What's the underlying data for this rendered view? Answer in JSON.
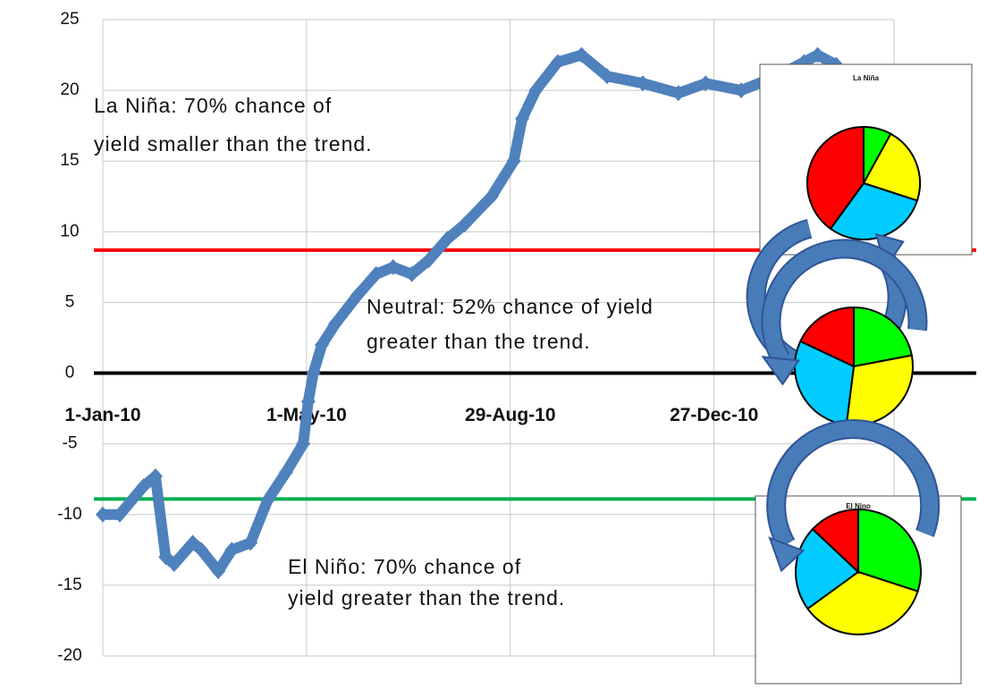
{
  "chart_data": [
    {
      "type": "line",
      "x": [
        "2010-01-01",
        "2010-01-11",
        "2010-01-25",
        "2010-02-01",
        "2010-02-07",
        "2010-02-12",
        "2010-02-23",
        "2010-02-28",
        "2010-03-10",
        "2010-03-18",
        "2010-03-29",
        "2010-04-08",
        "2010-04-19",
        "2010-04-29",
        "2010-05-02",
        "2010-05-05",
        "2010-05-10",
        "2010-05-18",
        "2010-05-31",
        "2010-06-11",
        "2010-06-21",
        "2010-07-02",
        "2010-07-12",
        "2010-07-23",
        "2010-08-02",
        "2010-08-18",
        "2010-08-31",
        "2010-09-05",
        "2010-09-13",
        "2010-09-26",
        "2010-10-10",
        "2010-10-25",
        "2010-11-15",
        "2010-12-06",
        "2010-12-22",
        "2011-01-12",
        "2011-02-02",
        "2011-02-18",
        "2011-02-26",
        "2011-03-09"
      ],
      "series": [
        {
          "color": "#4f81bd",
          "values": [
            -10,
            -10,
            -8,
            -7.3,
            -13,
            -13.5,
            -12,
            -12.5,
            -14,
            -12.5,
            -12,
            -9,
            -7,
            -5,
            -2,
            0,
            2,
            3.5,
            5.5,
            7,
            7.5,
            7,
            8,
            9.5,
            10.5,
            12.5,
            15,
            18,
            20,
            22,
            22.5,
            21,
            20.5,
            19.8,
            20.5,
            20,
            21,
            22,
            22.5,
            21.8
          ]
        }
      ],
      "xlim": [
        "2010-01-01",
        "2011-04-12"
      ],
      "xticks": [
        {
          "value": "2010-01-01",
          "label": "1-Jan-10"
        },
        {
          "value": "2010-05-01",
          "label": "1-May-10"
        },
        {
          "value": "2010-08-29",
          "label": "29-Aug-10"
        },
        {
          "value": "2010-12-27",
          "label": "27-Dec-10"
        }
      ],
      "ylim": [
        -20,
        25
      ],
      "yticks": [
        -20,
        -15,
        -10,
        -5,
        0,
        5,
        10,
        15,
        20,
        25
      ],
      "grid": true,
      "reference_lines": [
        {
          "value": 8.7,
          "color": "#ff0000"
        },
        {
          "value": 0,
          "color": "#000000"
        },
        {
          "value": -8.9,
          "color": "#00b050"
        }
      ],
      "annotations": [
        "La Niña: 70% chance of yield smaller than the trend.",
        "Neutral: 52% chance of yield greater than the trend.",
        "El Niño: 70% chance of yield greater than the trend."
      ]
    },
    {
      "type": "pie",
      "title": "La Niña",
      "values": [
        8,
        22,
        30,
        40
      ],
      "colors": [
        "#00ff00",
        "#ffff00",
        "#00ccff",
        "#ff0000"
      ]
    },
    {
      "type": "pie",
      "values": [
        22,
        30,
        30,
        18
      ],
      "colors": [
        "#00ff00",
        "#ffff00",
        "#00ccff",
        "#ff0000"
      ]
    },
    {
      "type": "pie",
      "title": "El Nino",
      "values": [
        30,
        35,
        22,
        13
      ],
      "colors": [
        "#00ff00",
        "#ffff00",
        "#00ccff",
        "#ff0000"
      ]
    }
  ]
}
